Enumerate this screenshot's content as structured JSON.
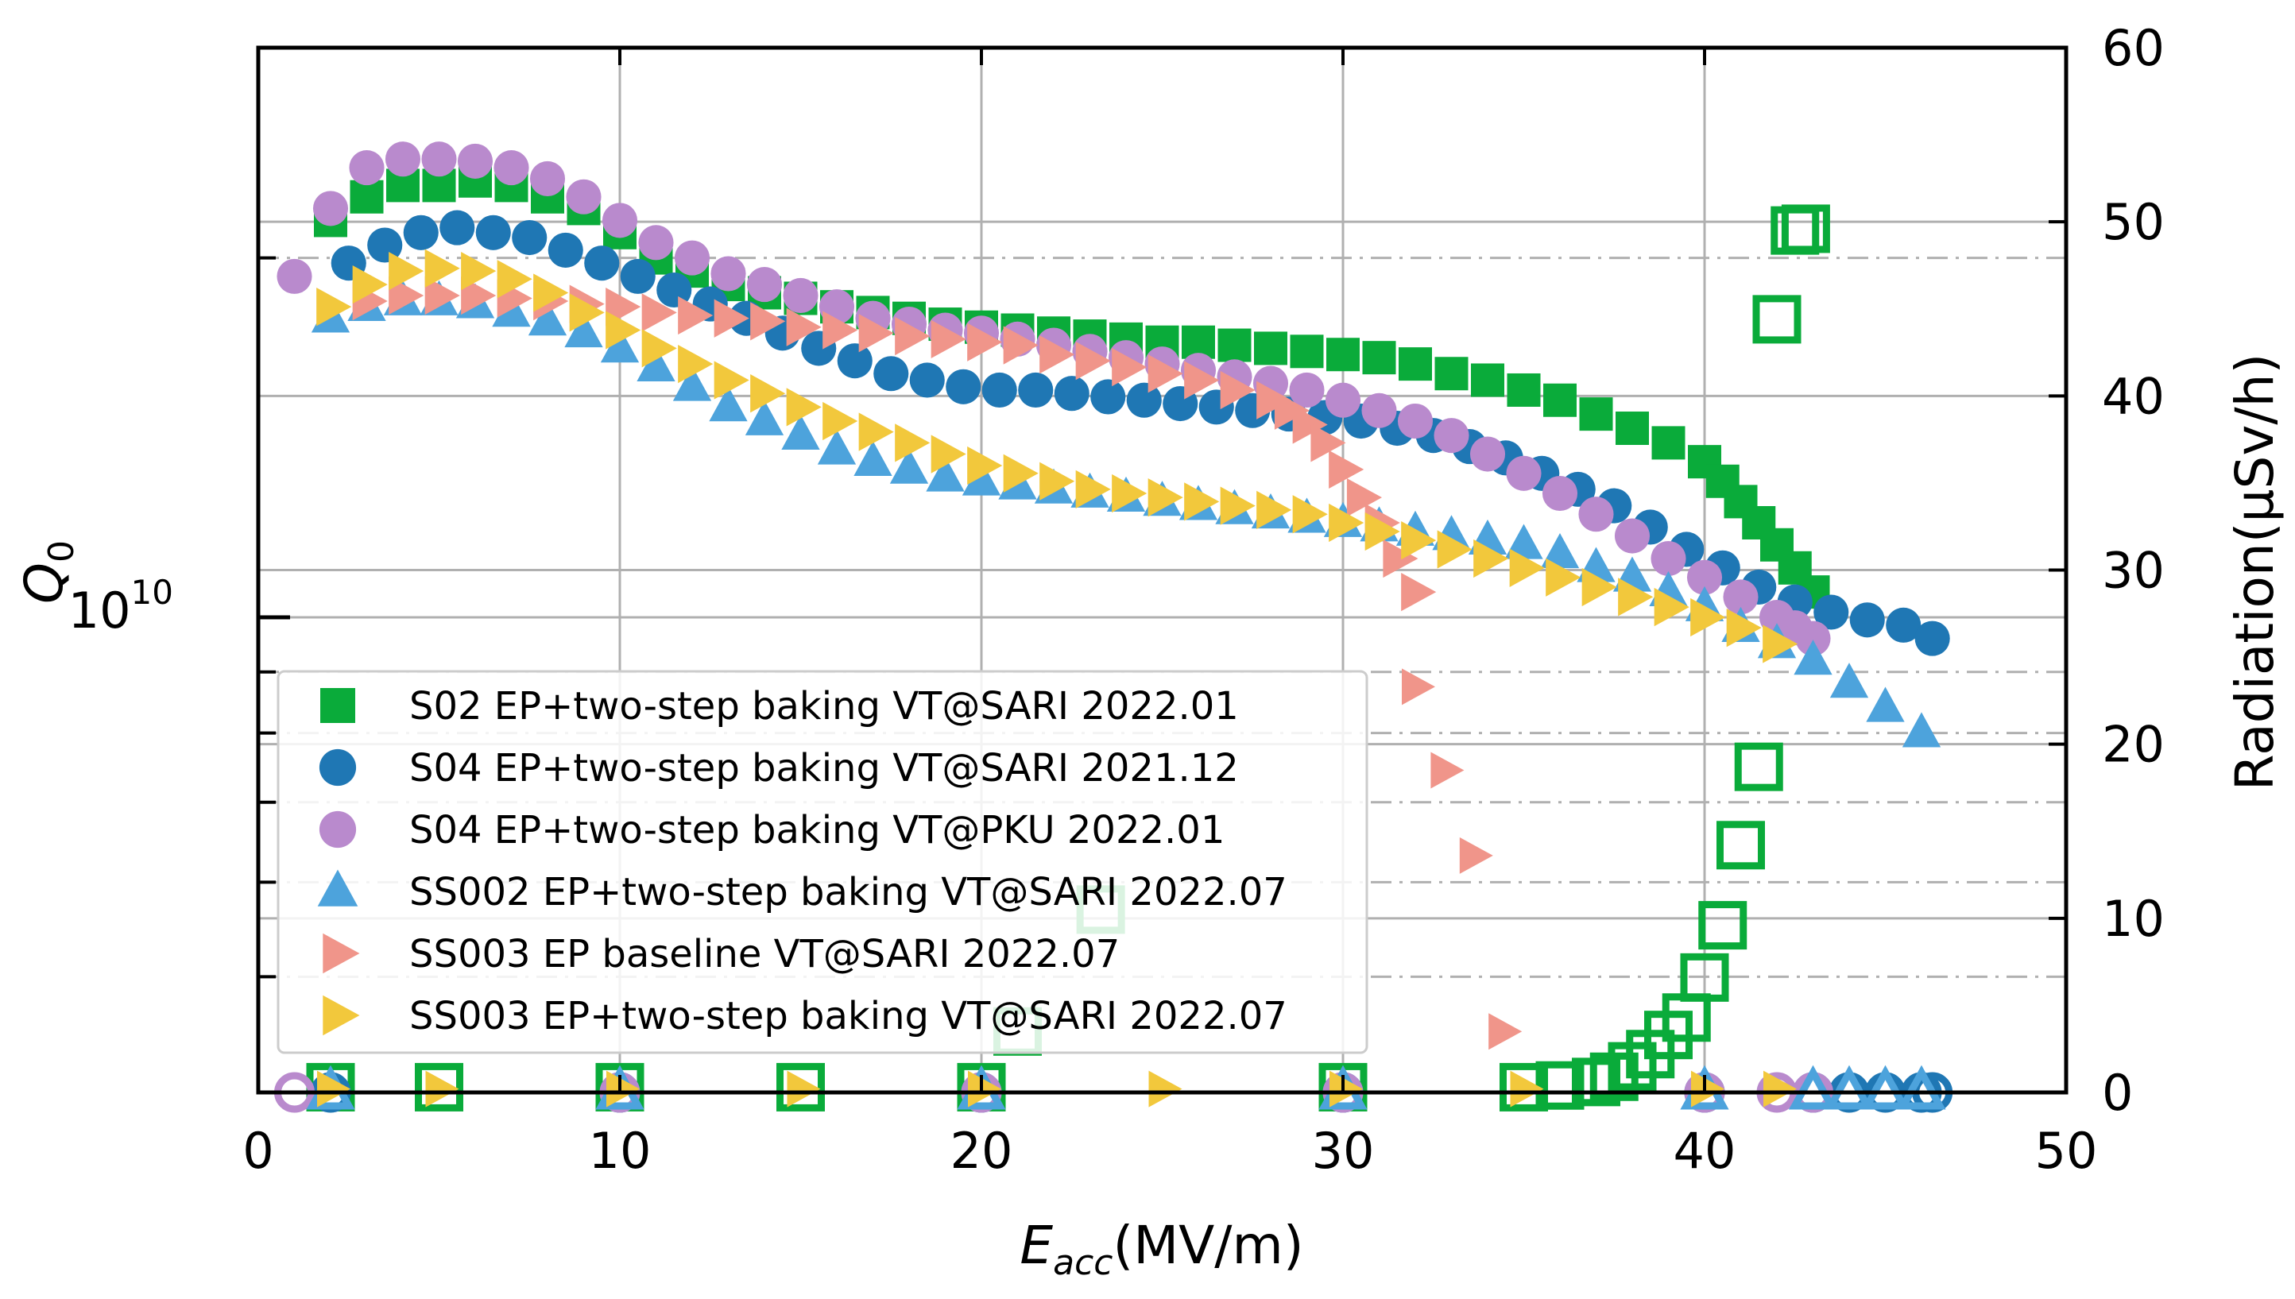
{
  "chart_data": {
    "type": "scatter",
    "xlabel": "E",
    "xlabel_sub": "acc",
    "xlabel_unit": "(MV/m)",
    "ylabel": "Q",
    "ylabel_sub": "0",
    "y2label": "Radiation(μSv/h)",
    "xlim": [
      0,
      50
    ],
    "ylim_log": [
      4000000000.0,
      30000000000.0
    ],
    "y2lim": [
      0,
      60
    ],
    "xticks": [
      "0",
      "10",
      "20",
      "30",
      "40",
      "50"
    ],
    "y2ticks": [
      "0",
      "10",
      "20",
      "30",
      "40",
      "50",
      "60"
    ],
    "ytick_label_base": "10",
    "ytick_label_exp": "10",
    "series": [
      {
        "name": "S02 EP+two-step baking VT@SARI 2022.01",
        "marker": "square",
        "color": "#0aab3a",
        "x": [
          2,
          3,
          4,
          5,
          6,
          7,
          8,
          9,
          10,
          11,
          12,
          13,
          14,
          15,
          16,
          17,
          18,
          19,
          20,
          21,
          22,
          23,
          24,
          25,
          26,
          27,
          28,
          29,
          30,
          31,
          32,
          33,
          34,
          35,
          36,
          37,
          38,
          39,
          40,
          40.5,
          41,
          41.5,
          42,
          42.5,
          43
        ],
        "q": [
          21500000000.0,
          22500000000.0,
          23000000000.0,
          23000000000.0,
          23200000000.0,
          23000000000.0,
          22500000000.0,
          22000000000.0,
          21000000000.0,
          20000000000.0,
          19500000000.0,
          19000000000.0,
          18700000000.0,
          18500000000.0,
          18200000000.0,
          18000000000.0,
          17800000000.0,
          17600000000.0,
          17500000000.0,
          17400000000.0,
          17300000000.0,
          17200000000.0,
          17100000000.0,
          17000000000.0,
          17000000000.0,
          16900000000.0,
          16800000000.0,
          16700000000.0,
          16600000000.0,
          16500000000.0,
          16300000000.0,
          16000000000.0,
          15800000000.0,
          15500000000.0,
          15200000000.0,
          14800000000.0,
          14400000000.0,
          14000000000.0,
          13500000000.0,
          13000000000.0,
          12500000000.0,
          12000000000.0,
          11500000000.0,
          11000000000.0,
          10500000000.0
        ]
      },
      {
        "name": "S04 EP+two-step baking VT@SARI 2021.12",
        "marker": "circle",
        "color": "#1f77b4",
        "x": [
          2.5,
          3.5,
          4.5,
          5.5,
          6.5,
          7.5,
          8.5,
          9.5,
          10.5,
          11.5,
          12.5,
          13.5,
          14.5,
          15.5,
          16.5,
          17.5,
          18.5,
          19.5,
          20.5,
          21.5,
          22.5,
          23.5,
          24.5,
          25.5,
          26.5,
          27.5,
          28.5,
          29.5,
          30.5,
          31.5,
          32.5,
          33.5,
          34.5,
          35.5,
          36.5,
          37.5,
          38.5,
          39.5,
          40.5,
          41.5,
          42.5,
          43.5,
          44.5,
          45.5,
          46.3
        ],
        "q": [
          19800000000.0,
          20500000000.0,
          21000000000.0,
          21200000000.0,
          21000000000.0,
          20800000000.0,
          20300000000.0,
          19800000000.0,
          19300000000.0,
          18800000000.0,
          18300000000.0,
          17800000000.0,
          17300000000.0,
          16800000000.0,
          16400000000.0,
          16000000000.0,
          15800000000.0,
          15600000000.0,
          15500000000.0,
          15500000000.0,
          15400000000.0,
          15300000000.0,
          15200000000.0,
          15100000000.0,
          15000000000.0,
          14900000000.0,
          14800000000.0,
          14700000000.0,
          14600000000.0,
          14400000000.0,
          14200000000.0,
          13900000000.0,
          13600000000.0,
          13200000000.0,
          12800000000.0,
          12400000000.0,
          11900000000.0,
          11400000000.0,
          11000000000.0,
          10600000000.0,
          10300000000.0,
          10100000000.0,
          9950000000.0,
          9850000000.0,
          9600000000.0
        ]
      },
      {
        "name": "S04 EP+two-step baking VT@PKU 2022.01",
        "marker": "circle",
        "color": "#b98acd",
        "x": [
          1,
          2,
          3,
          4,
          5,
          6,
          7,
          8,
          9,
          10,
          11,
          12,
          13,
          14,
          15,
          16,
          17,
          18,
          19,
          20,
          21,
          22,
          23,
          24,
          25,
          26,
          27,
          28,
          29,
          30,
          31,
          32,
          33,
          34,
          35,
          36,
          37,
          38,
          39,
          40,
          41,
          42,
          42.5,
          43
        ],
        "q": [
          19300000000.0,
          22000000000.0,
          23800000000.0,
          24200000000.0,
          24200000000.0,
          24100000000.0,
          23800000000.0,
          23300000000.0,
          22500000000.0,
          21500000000.0,
          20600000000.0,
          20000000000.0,
          19400000000.0,
          19000000000.0,
          18600000000.0,
          18200000000.0,
          17800000000.0,
          17600000000.0,
          17400000000.0,
          17300000000.0,
          17100000000.0,
          16900000000.0,
          16700000000.0,
          16500000000.0,
          16300000000.0,
          16100000000.0,
          15900000000.0,
          15700000000.0,
          15500000000.0,
          15200000000.0,
          14900000000.0,
          14600000000.0,
          14200000000.0,
          13700000000.0,
          13200000000.0,
          12700000000.0,
          12200000000.0,
          11700000000.0,
          11200000000.0,
          10800000000.0,
          10400000000.0,
          10000000000.0,
          9800000000.0,
          9600000000.0
        ]
      },
      {
        "name": "SS002 EP+two-step baking VT@SARI 2022.07",
        "marker": "triangle-up",
        "color": "#4da3dc",
        "x": [
          2,
          3,
          4,
          5,
          6,
          7,
          8,
          9,
          10,
          11,
          12,
          13,
          14,
          15,
          16,
          17,
          18,
          19,
          20,
          21,
          22,
          23,
          24,
          25,
          26,
          27,
          28,
          29,
          30,
          31,
          32,
          33,
          34,
          35,
          36,
          37,
          38,
          39,
          40,
          41,
          42,
          43,
          44,
          45,
          46
        ],
        "q": [
          17800000000.0,
          18200000000.0,
          18400000000.0,
          18400000000.0,
          18300000000.0,
          18000000000.0,
          17700000000.0,
          17300000000.0,
          16800000000.0,
          16200000000.0,
          15600000000.0,
          15000000000.0,
          14600000000.0,
          14200000000.0,
          13800000000.0,
          13500000000.0,
          13300000000.0,
          13100000000.0,
          13000000000.0,
          12900000000.0,
          12800000000.0,
          12700000000.0,
          12600000000.0,
          12500000000.0,
          12400000000.0,
          12300000000.0,
          12200000000.0,
          12100000000.0,
          12000000000.0,
          11900000000.0,
          11800000000.0,
          11700000000.0,
          11600000000.0,
          11500000000.0,
          11300000000.0,
          11000000000.0,
          10800000000.0,
          10500000000.0,
          10200000000.0,
          9800000000.0,
          9500000000.0,
          9200000000.0,
          8800000000.0,
          8400000000.0,
          8000000000.0
        ]
      },
      {
        "name": "SS003 EP baseline VT@SARI 2022.07",
        "marker": "triangle-right",
        "color": "#f0958a",
        "x": [
          3,
          4,
          5,
          6,
          7,
          8,
          9,
          10,
          11,
          12,
          13,
          14,
          15,
          16,
          17,
          18,
          19,
          20,
          21,
          22,
          23,
          24,
          25,
          26,
          27,
          28,
          28.5,
          29,
          29.5,
          30,
          30.5,
          31,
          31.5,
          32
        ],
        "q": [
          18400000000.0,
          18600000000.0,
          18600000000.0,
          18600000000.0,
          18500000000.0,
          18400000000.0,
          18300000000.0,
          18200000000.0,
          18000000000.0,
          17900000000.0,
          17800000000.0,
          17700000000.0,
          17500000000.0,
          17400000000.0,
          17300000000.0,
          17200000000.0,
          17100000000.0,
          17000000000.0,
          16900000000.0,
          16600000000.0,
          16400000000.0,
          16200000000.0,
          16000000000.0,
          15800000000.0,
          15500000000.0,
          15200000000.0,
          14900000000.0,
          14500000000.0,
          14000000000.0,
          13300000000.0,
          12600000000.0,
          12000000000.0,
          11200000000.0,
          10500000000.0
        ]
      },
      {
        "name": "SS003 EP+two-step baking VT@SARI 2022.07",
        "marker": "triangle-right",
        "color": "#f2c83c",
        "x": [
          2,
          3,
          4,
          5,
          6,
          7,
          8,
          9,
          10,
          11,
          12,
          13,
          14,
          15,
          16,
          17,
          18,
          19,
          20,
          21,
          22,
          23,
          24,
          25,
          26,
          27,
          28,
          29,
          30,
          31,
          32,
          33,
          34,
          35,
          36,
          37,
          38,
          39,
          40,
          41,
          42
        ],
        "q": [
          18200000000.0,
          19000000000.0,
          19500000000.0,
          19600000000.0,
          19500000000.0,
          19200000000.0,
          18700000000.0,
          18000000000.0,
          17400000000.0,
          16800000000.0,
          16300000000.0,
          15800000000.0,
          15400000000.0,
          15000000000.0,
          14600000000.0,
          14300000000.0,
          14000000000.0,
          13700000000.0,
          13400000000.0,
          13200000000.0,
          13000000000.0,
          12800000000.0,
          12700000000.0,
          12600000000.0,
          12500000000.0,
          12400000000.0,
          12300000000.0,
          12200000000.0,
          12000000000.0,
          11800000000.0,
          11600000000.0,
          11400000000.0,
          11200000000.0,
          11000000000.0,
          10800000000.0,
          10600000000.0,
          10400000000.0,
          10200000000.0,
          10000000000.0,
          9800000000.0,
          9500000000.0
        ]
      }
    ],
    "radiation": [
      {
        "series": "S02 EP+two-step baking VT@SARI 2022.01",
        "marker": "square-open",
        "color": "#0aab3a",
        "x": [
          2,
          5,
          10,
          15,
          20,
          21,
          23.3,
          30,
          35,
          36,
          37,
          37.5,
          38,
          38.5,
          39,
          39.5,
          40,
          40.5,
          41,
          41.5,
          42,
          42.5,
          42.8
        ],
        "y": [
          0.3,
          0.3,
          0.3,
          0.3,
          0.3,
          3.5,
          10.5,
          0.3,
          0.3,
          0.4,
          0.6,
          0.9,
          1.5,
          2.2,
          3.3,
          4.3,
          6.6,
          9.6,
          14.2,
          18.7,
          44.4,
          49.5,
          49.6
        ]
      },
      {
        "series": "S04 EP+two-step baking VT@SARI 2021.12",
        "marker": "circle-open",
        "color": "#1f77b4",
        "x": [
          2,
          10,
          20,
          30,
          40,
          43,
          44,
          45,
          46,
          46.3
        ],
        "y": [
          0,
          0,
          0,
          0,
          0,
          0,
          0,
          0,
          0,
          0
        ]
      },
      {
        "series": "S04 EP+two-step baking VT@PKU 2022.01",
        "marker": "circle-open",
        "color": "#b98acd",
        "x": [
          1,
          10,
          20,
          30,
          40,
          42,
          43
        ],
        "y": [
          0,
          0,
          0,
          0,
          0,
          0,
          0
        ]
      },
      {
        "series": "SS002 EP+two-step baking VT@SARI 2022.07",
        "marker": "triangle-up-open",
        "color": "#4da3dc",
        "x": [
          2,
          10,
          20,
          30,
          40,
          43,
          44,
          45,
          46
        ],
        "y": [
          0,
          0,
          0,
          0,
          0,
          0,
          0,
          0,
          0
        ]
      },
      {
        "series": "SS003 EP baseline VT@SARI 2022.07",
        "marker": "triangle-right",
        "color": "#f0958a",
        "x": [
          32,
          32.8,
          33.6,
          34.4
        ],
        "y": [
          23.3,
          18.5,
          13.6,
          3.5
        ]
      },
      {
        "series": "SS003 EP+two-step baking VT@SARI 2022.07",
        "marker": "triangle-right",
        "color": "#f2c83c",
        "x": [
          2,
          5,
          10,
          15,
          20,
          25,
          30,
          35,
          40,
          42
        ],
        "y": [
          0.2,
          0.2,
          0.2,
          0.2,
          0.2,
          0.2,
          0.2,
          0.2,
          0.2,
          0.2
        ]
      }
    ],
    "legend": {
      "placement": "lower-left",
      "entries": [
        "S02 EP+two-step baking VT@SARI 2022.01",
        "S04 EP+two-step baking VT@SARI 2021.12",
        "S04 EP+two-step baking VT@PKU 2022.01",
        "SS002 EP+two-step baking VT@SARI 2022.07",
        "SS003 EP baseline VT@SARI 2022.07",
        "SS003 EP+two-step baking VT@SARI 2022.07"
      ]
    },
    "grid": true
  }
}
